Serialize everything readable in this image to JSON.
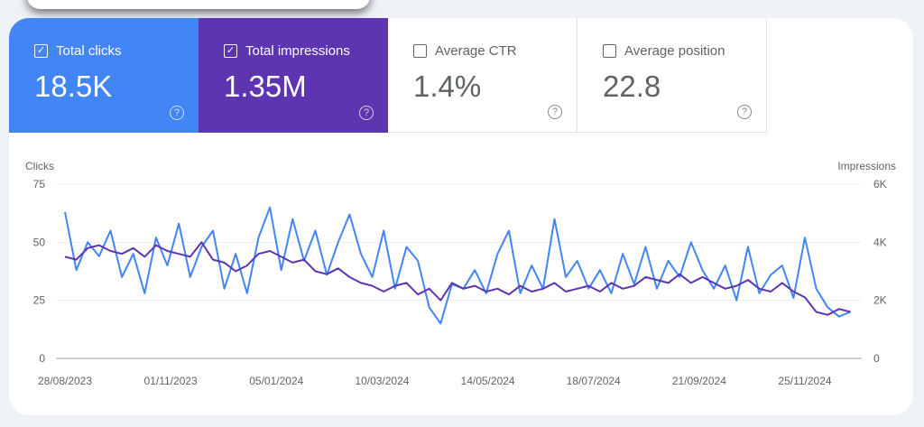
{
  "metrics": [
    {
      "label": "Total clicks",
      "value": "18.5K",
      "checked": true,
      "color": "#4285f4"
    },
    {
      "label": "Total impressions",
      "value": "1.35M",
      "checked": true,
      "color": "#5e35b1"
    },
    {
      "label": "Average CTR",
      "value": "1.4%",
      "checked": false
    },
    {
      "label": "Average position",
      "value": "22.8",
      "checked": false
    }
  ],
  "icons": {
    "checked": "☑",
    "unchecked": "☐",
    "help": "?"
  },
  "chart_data": {
    "type": "line",
    "left_axis_label": "Clicks",
    "right_axis_label": "Impressions",
    "left_ylim": [
      0,
      75
    ],
    "right_ylim": [
      0,
      6000
    ],
    "left_ticks": [
      "0",
      "25",
      "50",
      "75"
    ],
    "right_ticks": [
      "0",
      "2K",
      "4K",
      "6K"
    ],
    "x_ticks": [
      "28/08/2023",
      "01/11/2023",
      "05/01/2024",
      "10/03/2024",
      "14/05/2024",
      "18/07/2024",
      "21/09/2024",
      "25/11/2024"
    ],
    "grid": true,
    "x": [
      "2023-08-28",
      "2023-09-04",
      "2023-09-11",
      "2023-09-18",
      "2023-09-25",
      "2023-10-02",
      "2023-10-09",
      "2023-10-16",
      "2023-10-23",
      "2023-10-30",
      "2023-11-06",
      "2023-11-13",
      "2023-11-20",
      "2023-11-27",
      "2023-12-04",
      "2023-12-11",
      "2023-12-18",
      "2023-12-25",
      "2024-01-01",
      "2024-01-08",
      "2024-01-15",
      "2024-01-22",
      "2024-01-29",
      "2024-02-05",
      "2024-02-12",
      "2024-02-19",
      "2024-02-26",
      "2024-03-04",
      "2024-03-11",
      "2024-03-18",
      "2024-03-25",
      "2024-04-01",
      "2024-04-08",
      "2024-04-15",
      "2024-04-22",
      "2024-04-29",
      "2024-05-06",
      "2024-05-13",
      "2024-05-20",
      "2024-05-27",
      "2024-06-03",
      "2024-06-10",
      "2024-06-17",
      "2024-06-24",
      "2024-07-01",
      "2024-07-08",
      "2024-07-15",
      "2024-07-22",
      "2024-07-29",
      "2024-08-05",
      "2024-08-12",
      "2024-08-19",
      "2024-08-26",
      "2024-09-02",
      "2024-09-09",
      "2024-09-16",
      "2024-09-23",
      "2024-09-30",
      "2024-10-07",
      "2024-10-14",
      "2024-10-21",
      "2024-10-28",
      "2024-11-04",
      "2024-11-11",
      "2024-11-18",
      "2024-11-25",
      "2024-12-02",
      "2024-12-09",
      "2024-12-16",
      "2024-12-23"
    ],
    "series": [
      {
        "name": "Clicks",
        "axis": "left",
        "color": "#4285f4",
        "values": [
          63,
          38,
          50,
          44,
          55,
          35,
          45,
          28,
          52,
          40,
          58,
          35,
          48,
          55,
          30,
          45,
          28,
          52,
          65,
          38,
          60,
          42,
          55,
          36,
          50,
          62,
          45,
          35,
          55,
          30,
          48,
          42,
          22,
          15,
          32,
          30,
          38,
          28,
          45,
          55,
          28,
          40,
          30,
          60,
          35,
          42,
          30,
          38,
          28,
          45,
          32,
          48,
          30,
          42,
          35,
          50,
          38,
          30,
          40,
          25,
          48,
          28,
          36,
          40,
          26,
          52,
          30,
          22,
          18,
          20
        ]
      },
      {
        "name": "Impressions",
        "axis": "right",
        "color": "#5e35b1",
        "values": [
          3500,
          3400,
          3800,
          3900,
          3700,
          3600,
          3800,
          3500,
          3900,
          3700,
          3600,
          3500,
          4000,
          3400,
          3300,
          3000,
          3200,
          3600,
          3700,
          3500,
          3300,
          3400,
          3000,
          2900,
          3100,
          2800,
          2600,
          2500,
          2300,
          2500,
          2600,
          2200,
          2400,
          2000,
          2600,
          2400,
          2500,
          2300,
          2400,
          2200,
          2500,
          2300,
          2400,
          2600,
          2300,
          2400,
          2500,
          2300,
          2600,
          2400,
          2500,
          2800,
          2700,
          2600,
          2900,
          2600,
          2800,
          2600,
          2400,
          2500,
          2700,
          2400,
          2300,
          2600,
          2300,
          2100,
          1600,
          1500,
          1700,
          1600
        ]
      }
    ]
  }
}
